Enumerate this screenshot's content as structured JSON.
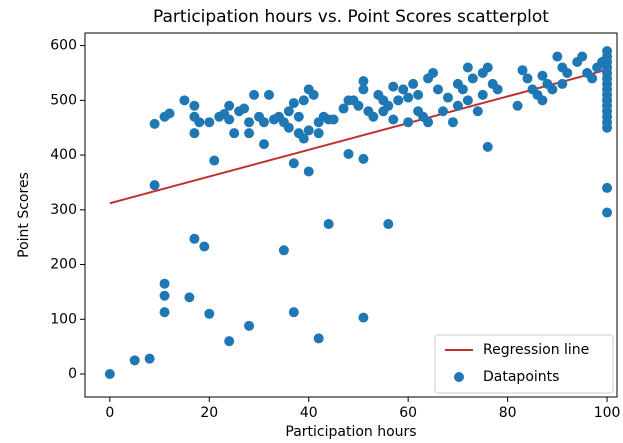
{
  "chart_data": {
    "type": "scatter",
    "title": "Participation hours vs. Point Scores scatterplot",
    "xlabel": "Participation hours",
    "ylabel": "Point Scores",
    "xlim": [
      -5,
      102
    ],
    "ylim": [
      -42,
      623
    ],
    "xticks": [
      0,
      20,
      40,
      60,
      80,
      100
    ],
    "yticks": [
      0,
      100,
      200,
      300,
      400,
      500,
      600
    ],
    "legend": "lower right",
    "series": [
      {
        "name": "Regression line",
        "color": "#c0302b",
        "kind": "line",
        "x": [
          0,
          100
        ],
        "values": [
          312,
          556
        ]
      },
      {
        "name": "Datapoints",
        "color": "#1f77b4",
        "kind": "points",
        "x": [
          0,
          5,
          8,
          11,
          11,
          11,
          16,
          17,
          19,
          20,
          24,
          28,
          35,
          37,
          42,
          44,
          51,
          56,
          9,
          21,
          37,
          40,
          48,
          51,
          76,
          100,
          100,
          9,
          11,
          12,
          15,
          17,
          17,
          17,
          18,
          20,
          22,
          23,
          24,
          24,
          25,
          26,
          27,
          28,
          28,
          29,
          30,
          31,
          31,
          32,
          33,
          34,
          35,
          36,
          36,
          37,
          38,
          38,
          39,
          39,
          40,
          40,
          41,
          42,
          42,
          43,
          44,
          45,
          47,
          48,
          49,
          50,
          51,
          51,
          52,
          53,
          54,
          55,
          55,
          56,
          57,
          57,
          58,
          59,
          60,
          60,
          61,
          62,
          62,
          63,
          64,
          64,
          65,
          66,
          67,
          68,
          69,
          70,
          70,
          71,
          72,
          72,
          73,
          74,
          75,
          75,
          76,
          77,
          78,
          82,
          83,
          84,
          85,
          86,
          87,
          87,
          88,
          89,
          90,
          91,
          91,
          92,
          94,
          95,
          96,
          97,
          98,
          99,
          100,
          100,
          100,
          100,
          100,
          100,
          100,
          100,
          100,
          100,
          100,
          100,
          100,
          100,
          100
        ],
        "values": [
          0,
          25,
          28,
          165,
          143,
          113,
          140,
          247,
          233,
          110,
          60,
          88,
          226,
          113,
          65,
          274,
          103,
          274,
          345,
          390,
          385,
          370,
          402,
          393,
          415,
          340,
          295,
          457,
          470,
          476,
          500,
          490,
          470,
          440,
          460,
          460,
          470,
          475,
          490,
          465,
          440,
          480,
          485,
          460,
          440,
          510,
          470,
          420,
          460,
          510,
          465,
          470,
          460,
          480,
          450,
          495,
          440,
          470,
          500,
          430,
          520,
          445,
          510,
          440,
          460,
          470,
          465,
          465,
          485,
          500,
          500,
          490,
          535,
          520,
          480,
          470,
          510,
          500,
          480,
          490,
          525,
          465,
          500,
          520,
          505,
          460,
          530,
          480,
          510,
          470,
          540,
          460,
          550,
          520,
          480,
          505,
          460,
          530,
          490,
          520,
          560,
          500,
          540,
          480,
          550,
          510,
          560,
          530,
          520,
          490,
          555,
          540,
          520,
          510,
          545,
          500,
          530,
          520,
          580,
          560,
          530,
          550,
          570,
          580,
          550,
          540,
          560,
          570,
          590,
          580,
          570,
          560,
          550,
          540,
          530,
          520,
          510,
          500,
          490,
          480,
          470,
          460,
          450
        ]
      }
    ]
  }
}
